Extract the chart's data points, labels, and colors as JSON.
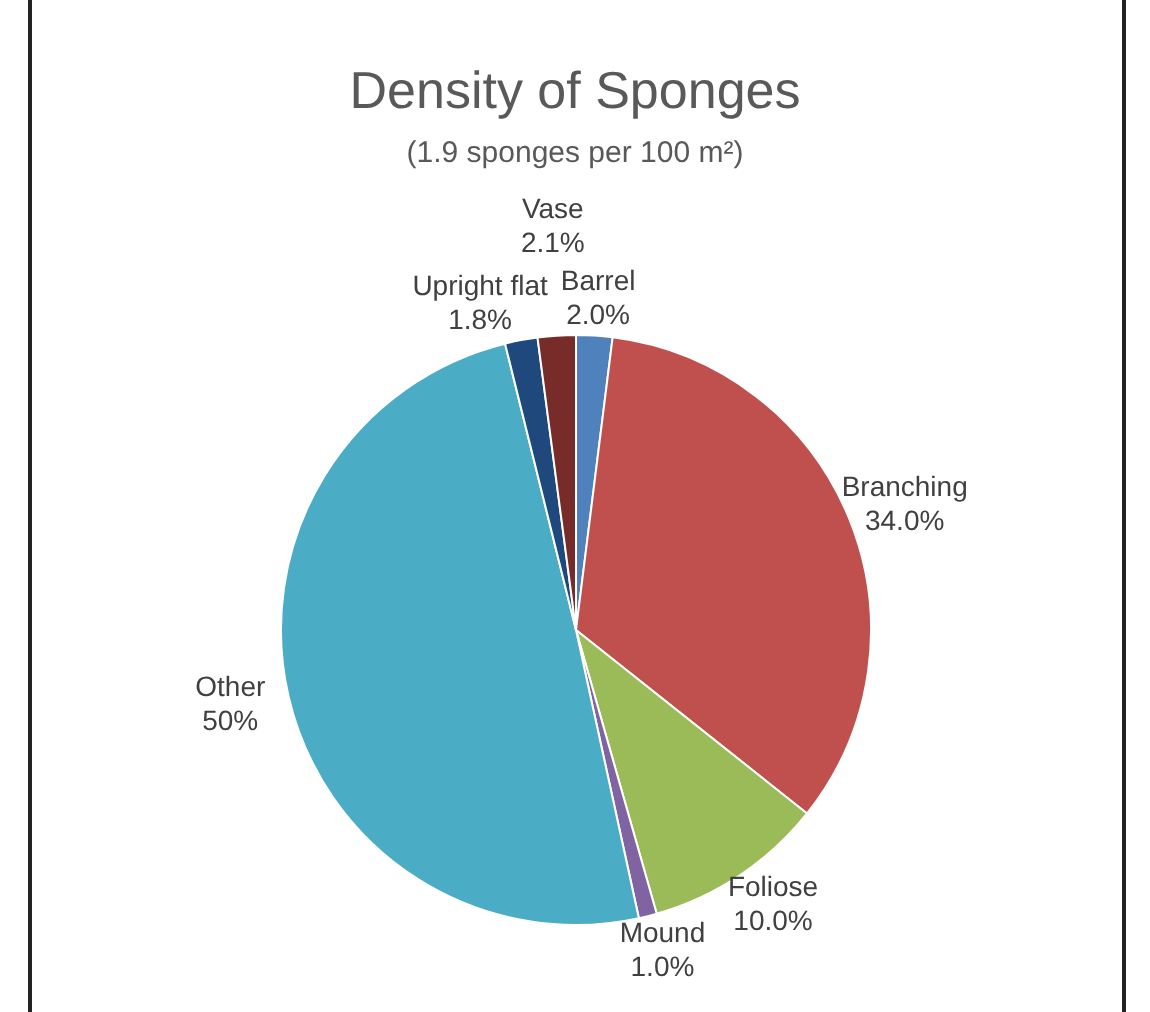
{
  "chart_data": {
    "type": "pie",
    "title": "Density of Sponges",
    "subtitle": "(1.9 sponges per 100 m²)",
    "categories": [
      "Barrel",
      "Branching",
      "Foliose",
      "Mound",
      "Other",
      "Upright flat",
      "Vase"
    ],
    "values": [
      2.0,
      34.0,
      10.0,
      1.0,
      50,
      1.8,
      2.1
    ],
    "value_labels": [
      "2.0%",
      "34.0%",
      "10.0%",
      "1.0%",
      "50%",
      "1.8%",
      "2.1%"
    ],
    "colors": [
      "#4f81bd",
      "#c0504d",
      "#9bbb59",
      "#8064a2",
      "#4bacc6",
      "#1f497d",
      "#772c2a"
    ],
    "legend": false
  }
}
